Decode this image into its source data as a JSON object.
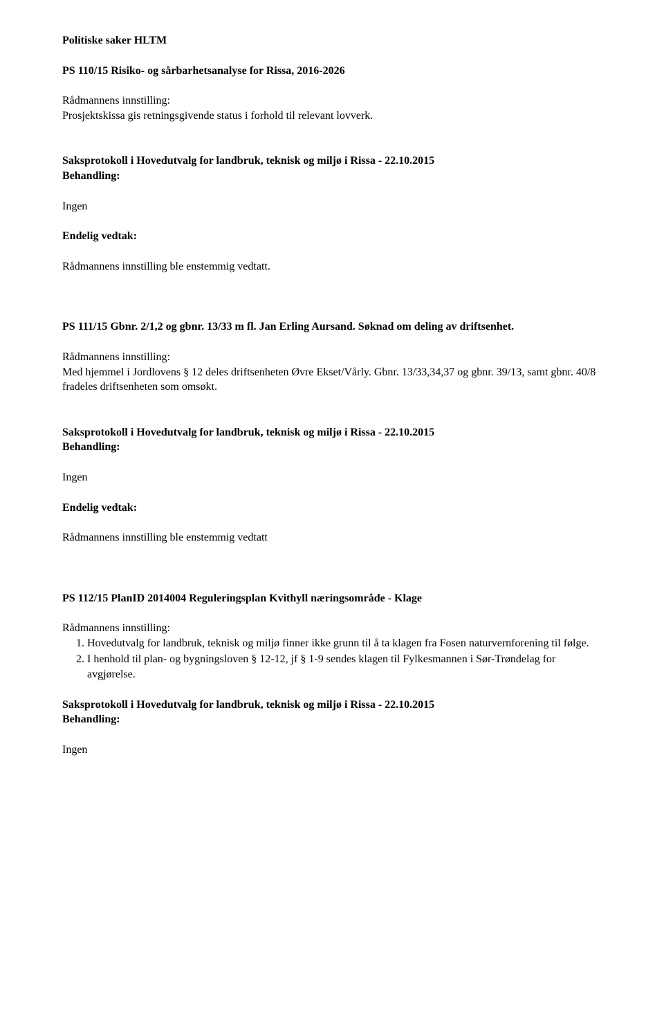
{
  "heading": "Politiske saker HLTM",
  "case1": {
    "title": "PS 110/15 Risiko- og sårbarhetsanalyse for Rissa, 2016-2026",
    "recommend_label": "Rådmannens innstilling:",
    "recommend_text": "Prosjektskissa gis retningsgivende status i forhold til relevant lovverk.",
    "protocol_line1": "Saksprotokoll i Hovedutvalg for landbruk, teknisk og miljø i Rissa - 22.10.2015",
    "protocol_line2": "Behandling:",
    "none": "Ingen",
    "final_label": "Endelig vedtak:",
    "final_text": "Rådmannens innstilling ble enstemmig vedtatt."
  },
  "case2": {
    "title": "PS 111/15 Gbnr. 2/1,2 og gbnr. 13/33 m fl. Jan Erling Aursand. Søknad om deling av driftsenhet.",
    "recommend_label": "Rådmannens innstilling:",
    "recommend_text": "Med hjemmel i Jordlovens § 12 deles driftsenheten Øvre Ekset/Vårly. Gbnr. 13/33,34,37 og gbnr. 39/13, samt gbnr. 40/8 fradeles driftsenheten som omsøkt.",
    "protocol_line1": "Saksprotokoll i Hovedutvalg for landbruk, teknisk og miljø i Rissa - 22.10.2015",
    "protocol_line2": "Behandling:",
    "none": "Ingen",
    "final_label": "Endelig vedtak:",
    "final_text": "Rådmannens innstilling ble enstemmig vedtatt"
  },
  "case3": {
    "title": "PS 112/15 PlanID 2014004 Reguleringsplan Kvithyll næringsområde - Klage",
    "recommend_label": "Rådmannens innstilling:",
    "items": [
      "Hovedutvalg for landbruk, teknisk og miljø finner ikke grunn til å ta klagen fra Fosen naturvernforening til følge.",
      "I henhold til plan- og bygningsloven § 12-12, jf § 1-9 sendes klagen til Fylkesmannen i Sør-Trøndelag for avgjørelse."
    ],
    "protocol_line1": "Saksprotokoll i Hovedutvalg for landbruk, teknisk og miljø i Rissa - 22.10.2015",
    "protocol_line2": "Behandling:",
    "none": "Ingen"
  }
}
